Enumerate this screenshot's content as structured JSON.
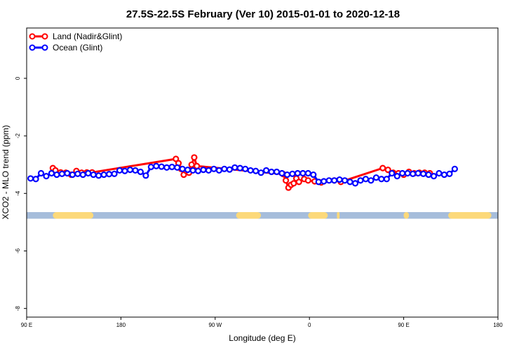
{
  "chart_data": {
    "type": "line",
    "title": "27.5S-22.5S February (Ver 10)   2015-01-01 to 2020-12-18",
    "xlabel": "Longitude (deg E)",
    "ylabel": "XCO2 - MLO trend (ppm)",
    "xlim": [
      90,
      450
    ],
    "ylim": [
      -8.3,
      1.75
    ],
    "x_ticks": [
      {
        "value": 90,
        "label": "90 E"
      },
      {
        "value": 162,
        "label": "180"
      },
      {
        "value": 234,
        "label": "90 W"
      },
      {
        "value": 306,
        "label": "0"
      },
      {
        "value": 378,
        "label": "90 E"
      },
      {
        "value": 450,
        "label": "180"
      }
    ],
    "y_ticks": [
      {
        "value": 0,
        "label": "0"
      },
      {
        "value": -2,
        "label": "-2"
      },
      {
        "value": -4,
        "label": "-4"
      },
      {
        "value": -6,
        "label": "-6"
      },
      {
        "value": -8,
        "label": "-8"
      }
    ],
    "legend": {
      "position": "top-left"
    },
    "series": [
      {
        "name": "Land (Nadir&Glint)",
        "color": "#ff0000",
        "x": [
          110,
          112,
          116,
          120,
          124,
          128,
          132,
          136,
          140,
          204,
          206,
          208,
          210,
          212,
          214,
          216,
          218,
          220,
          286,
          288,
          290,
          292,
          294,
          296,
          298,
          302,
          305,
          310,
          315,
          325,
          330,
          362,
          366,
          370,
          374,
          378,
          382,
          386,
          390,
          394,
          398
        ],
        "y": [
          -3.12,
          -3.2,
          -3.27,
          -3.28,
          -3.35,
          -3.22,
          -3.28,
          -3.27,
          -3.27,
          -2.8,
          -2.95,
          -3.15,
          -3.35,
          -3.22,
          -3.28,
          -3.0,
          -2.75,
          -3.05,
          -3.33,
          -3.55,
          -3.8,
          -3.7,
          -3.65,
          -3.48,
          -3.6,
          -3.5,
          -3.55,
          -3.58,
          -3.62,
          -3.55,
          -3.6,
          -3.12,
          -3.18,
          -3.28,
          -3.3,
          -3.35,
          -3.25,
          -3.3,
          -3.28,
          -3.28,
          -3.3
        ]
      },
      {
        "name": "Ocean (Glint)",
        "color": "#0000ff",
        "x": [
          93,
          97,
          101,
          105,
          109,
          113,
          117,
          121,
          125,
          129,
          133,
          137,
          141,
          145,
          149,
          153,
          157,
          161,
          165,
          169,
          173,
          177,
          181,
          185,
          189,
          193,
          197,
          201,
          205,
          209,
          213,
          217,
          221,
          225,
          229,
          233,
          237,
          241,
          245,
          249,
          253,
          257,
          261,
          265,
          269,
          273,
          277,
          281,
          285,
          289,
          293,
          297,
          301,
          305,
          309,
          313,
          317,
          321,
          325,
          329,
          333,
          337,
          341,
          345,
          349,
          353,
          357,
          361,
          365,
          369,
          373,
          377,
          381,
          385,
          389,
          393,
          397,
          401,
          405,
          409,
          413,
          417
        ],
        "y": [
          -3.48,
          -3.5,
          -3.3,
          -3.4,
          -3.3,
          -3.35,
          -3.32,
          -3.3,
          -3.35,
          -3.32,
          -3.35,
          -3.3,
          -3.35,
          -3.38,
          -3.35,
          -3.33,
          -3.32,
          -3.2,
          -3.22,
          -3.18,
          -3.2,
          -3.25,
          -3.38,
          -3.08,
          -3.05,
          -3.07,
          -3.1,
          -3.08,
          -3.1,
          -3.15,
          -3.18,
          -3.2,
          -3.22,
          -3.18,
          -3.2,
          -3.15,
          -3.2,
          -3.15,
          -3.17,
          -3.1,
          -3.12,
          -3.15,
          -3.2,
          -3.22,
          -3.28,
          -3.2,
          -3.25,
          -3.25,
          -3.3,
          -3.35,
          -3.32,
          -3.3,
          -3.3,
          -3.3,
          -3.35,
          -3.6,
          -3.58,
          -3.55,
          -3.55,
          -3.52,
          -3.55,
          -3.6,
          -3.65,
          -3.55,
          -3.5,
          -3.55,
          -3.45,
          -3.5,
          -3.5,
          -3.3,
          -3.4,
          -3.3,
          -3.3,
          -3.32,
          -3.3,
          -3.32,
          -3.35,
          -3.4,
          -3.3,
          -3.35,
          -3.32,
          -3.15
        ]
      }
    ],
    "map_strip": {
      "y_top": -4.65,
      "y_bottom": -4.88,
      "ocean_color": "#a6bddb",
      "land_color": "#fcd97a",
      "land_segments": [
        [
          110,
          141
        ],
        [
          250,
          269
        ],
        [
          305,
          320
        ],
        [
          327,
          329
        ],
        [
          378,
          382
        ],
        [
          412,
          445
        ]
      ]
    }
  }
}
